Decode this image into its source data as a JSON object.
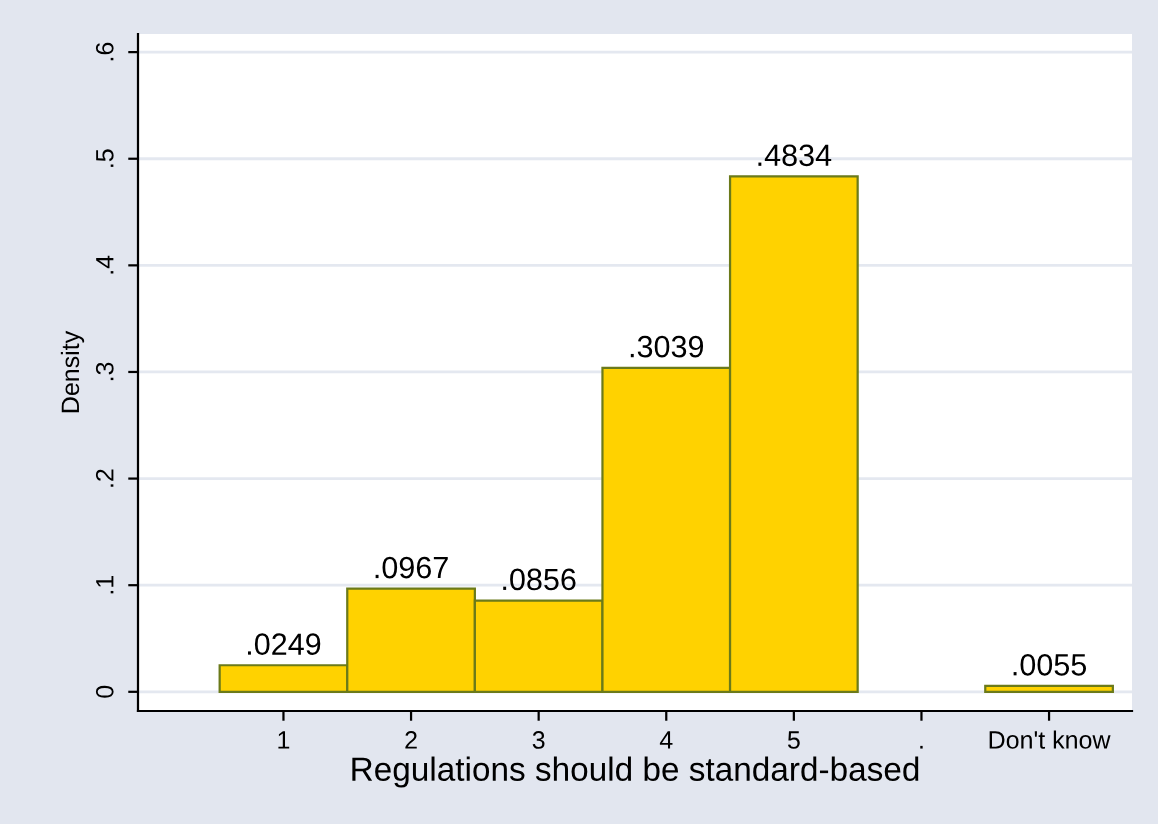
{
  "chart_data": {
    "type": "bar",
    "xlabel": "Regulations should be standard-based",
    "ylabel": "Density",
    "categories": [
      "1",
      "2",
      "3",
      "4",
      "5",
      ".",
      "Don't know"
    ],
    "values": [
      0.0249,
      0.0967,
      0.0856,
      0.3039,
      0.4834,
      null,
      0.0055
    ],
    "value_labels": [
      ".0249",
      ".0967",
      ".0856",
      ".3039",
      ".4834",
      null,
      ".0055"
    ],
    "color": "#ffd200",
    "ylim": [
      -0.018,
      0.617
    ],
    "yticks": [
      {
        "value": 0,
        "label": "0"
      },
      {
        "value": 0.1,
        "label": ".1"
      },
      {
        "value": 0.2,
        "label": ".2"
      },
      {
        "value": 0.3,
        "label": ".3"
      },
      {
        "value": 0.4,
        "label": ".4"
      },
      {
        "value": 0.5,
        "label": ".5"
      },
      {
        "value": 0.6,
        "label": ".6"
      }
    ],
    "grid": "y",
    "legend": false
  }
}
